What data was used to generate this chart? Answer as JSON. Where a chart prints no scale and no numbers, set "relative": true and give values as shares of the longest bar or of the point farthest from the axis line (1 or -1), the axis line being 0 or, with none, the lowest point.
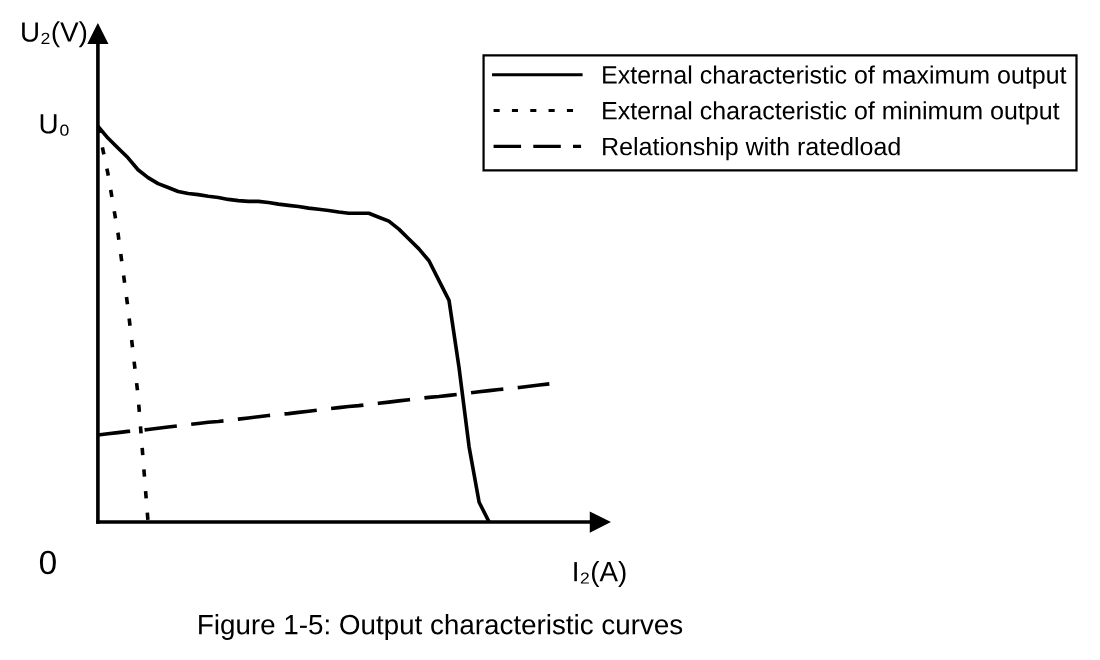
{
  "chart_data": {
    "type": "line",
    "relative": true,
    "xlabel": "I₂(A)",
    "ylabel": "U₂(V)",
    "legend": "top right",
    "categories": [
      null,
      null,
      null,
      null,
      null,
      null,
      null,
      null,
      null,
      null,
      null,
      null,
      null,
      null,
      null,
      null,
      null,
      null,
      null,
      null,
      null,
      null,
      null,
      null,
      null,
      null,
      null,
      null,
      null,
      null,
      null,
      null,
      null,
      null,
      null,
      null,
      null,
      null,
      null,
      null,
      null,
      null,
      null,
      null,
      null,
      null,
      null,
      null,
      null,
      null,
      null
    ],
    "series": [
      {
        "name": "External characteristic of maximum output",
        "color": "#000000",
        "line_style": "solid",
        "values": [
          1,
          0.97,
          0.945,
          0.92,
          0.89,
          0.87,
          0.855,
          0.845,
          0.835,
          0.83,
          0.827,
          0.823,
          0.82,
          0.815,
          0.812,
          0.81,
          0.81,
          0.807,
          0.803,
          0.8,
          0.797,
          0.793,
          0.79,
          0.787,
          0.783,
          0.78,
          0.78,
          0.78,
          0.77,
          0.76,
          0.74,
          0.715,
          0.69,
          0.66,
          0.61,
          0.56,
          0.39,
          0.19,
          0.05,
          0,
          null,
          null,
          null,
          null,
          null,
          null,
          null,
          null,
          null,
          null,
          null
        ]
      },
      {
        "name": "External characteristic of minimum output",
        "color": "#000000",
        "line_style": "dotted",
        "values": [
          1,
          0.88,
          0.73,
          0.54,
          0.32,
          0,
          null,
          null,
          null,
          null,
          null,
          null,
          null,
          null,
          null,
          null,
          null,
          null,
          null,
          null,
          null,
          null,
          null,
          null,
          null,
          null,
          null,
          null,
          null,
          null,
          null,
          null,
          null,
          null,
          null,
          null,
          null,
          null,
          null,
          null,
          null,
          null,
          null,
          null,
          null,
          null,
          null,
          null,
          null,
          null,
          null
        ]
      },
      {
        "name": "Relationship with ratedload",
        "color": "#000000",
        "line_style": "dashed",
        "values": [
          0.22,
          0.223,
          0.226,
          0.229,
          0.231,
          0.234,
          0.237,
          0.24,
          0.243,
          0.246,
          0.249,
          0.252,
          0.254,
          0.257,
          0.26,
          0.263,
          0.266,
          0.269,
          0.272,
          0.274,
          0.277,
          0.28,
          0.283,
          0.286,
          0.289,
          0.292,
          0.294,
          0.297,
          0.3,
          0.303,
          0.306,
          0.309,
          0.312,
          0.315,
          0.317,
          0.32,
          0.323,
          0.326,
          0.329,
          0.332,
          0.335,
          0.337,
          0.34,
          0.343,
          0.346,
          0.349,
          null,
          null,
          null,
          null,
          null
        ]
      }
    ],
    "annotations": [
      "U₀",
      "0",
      "Figure 1-5: Output characteristic curves"
    ]
  }
}
